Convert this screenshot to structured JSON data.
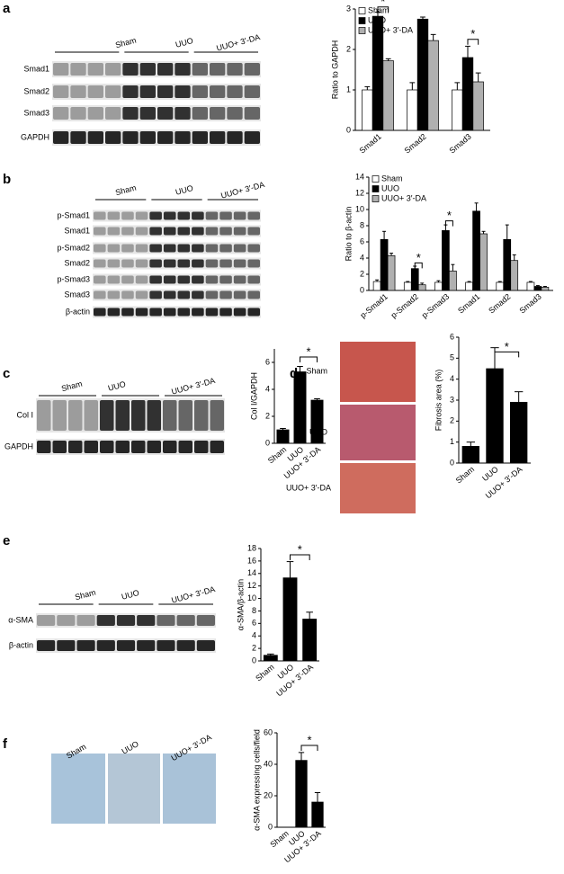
{
  "panels": [
    "a",
    "b",
    "c",
    "d",
    "e",
    "f"
  ],
  "blots": [
    {
      "groups": [
        "Sham",
        "UUO",
        "UUO+ 3′-DA"
      ],
      "rows": [
        "Smad1",
        "Smad2",
        "Smad3",
        "GAPDH"
      ]
    },
    {
      "groups": [
        "Sham",
        "UUO",
        "UUO+ 3′-DA"
      ],
      "rows": [
        "p-Smad1",
        "Smad1",
        "p-Smad2",
        "Smad2",
        "p-Smad3",
        "Smad3",
        "β-actin"
      ]
    },
    {
      "groups": [
        "Sham",
        "UUO",
        "UUO+ 3′-DA"
      ],
      "rows": [
        "Col I",
        "GAPDH"
      ]
    },
    {
      "groups": [
        "Sham",
        "UUO",
        "UUO+ 3′-DA"
      ],
      "rows": [
        "α-SMA",
        "β-actin"
      ]
    }
  ],
  "micrographs": [
    {
      "labels": [
        "Sham",
        "UUO",
        "UUO+ 3′-DA"
      ]
    },
    {
      "labels": [
        "Sham",
        "UUO",
        "UUO+ 3′-DA"
      ]
    }
  ],
  "chart_data": [
    {
      "type": "bar",
      "ylabel": "Ratio to GAPDH",
      "categories": [
        "Smad1",
        "Smad2",
        "Smad3"
      ],
      "series": [
        {
          "name": "Sham",
          "color": "#ffffff",
          "values": [
            1.0,
            1.0,
            1.0
          ],
          "errors": [
            0.08,
            0.18,
            0.18
          ]
        },
        {
          "name": "UUO",
          "color": "#000000",
          "values": [
            2.82,
            2.75,
            1.8
          ],
          "errors": [
            0.1,
            0.05,
            0.28
          ]
        },
        {
          "name": "UUO+ 3′-DA",
          "color": "#b0b0b0",
          "values": [
            1.72,
            2.22,
            1.2
          ],
          "errors": [
            0.05,
            0.15,
            0.22
          ]
        }
      ],
      "ylim": [
        0,
        3
      ],
      "yticks": [
        0,
        1,
        2,
        3
      ],
      "legend": "upper left",
      "annotations": [
        "*",
        "*"
      ]
    },
    {
      "type": "bar",
      "ylabel": "Ratio to β-actin",
      "categories": [
        "p-Smad1",
        "p-Smad2",
        "p-Smad3",
        "Smad1",
        "Smad2",
        "Smad3"
      ],
      "series": [
        {
          "name": "Sham",
          "color": "#ffffff",
          "values": [
            1.1,
            1.0,
            1.0,
            1.0,
            1.0,
            1.0
          ],
          "errors": [
            0.2,
            0.1,
            0.2,
            0.1,
            0.1,
            0.1
          ]
        },
        {
          "name": "UUO",
          "color": "#000000",
          "values": [
            6.3,
            2.7,
            7.4,
            9.8,
            6.3,
            0.5
          ],
          "errors": [
            1.0,
            0.3,
            0.7,
            1.0,
            1.8,
            0.1
          ]
        },
        {
          "name": "UUO+ 3′-DA",
          "color": "#b0b0b0",
          "values": [
            4.3,
            0.7,
            2.4,
            7.0,
            3.7,
            0.4
          ],
          "errors": [
            0.3,
            0.2,
            0.8,
            0.3,
            0.7,
            0.1
          ]
        }
      ],
      "ylim": [
        0,
        14
      ],
      "yticks": [
        0,
        2,
        4,
        6,
        8,
        10,
        12,
        14
      ],
      "legend": "upper left",
      "annotations": [
        "*",
        "*"
      ]
    },
    {
      "type": "bar",
      "ylabel": "Col I/GAPDH",
      "categories": [
        "Sham",
        "UUO",
        "UUO+ 3′-DA"
      ],
      "values": [
        1.0,
        5.3,
        3.2
      ],
      "errors": [
        0.1,
        0.4,
        0.1
      ],
      "color": "#000000",
      "ylim": [
        0,
        7
      ],
      "yticks": [
        0,
        2,
        4,
        6
      ],
      "annotations": [
        "*"
      ]
    },
    {
      "type": "bar",
      "ylabel": "Fibrosis area (%)",
      "categories": [
        "Sham",
        "UUO",
        "UUO+ 3′-DA"
      ],
      "values": [
        0.8,
        4.5,
        2.9
      ],
      "errors": [
        0.2,
        1.0,
        0.5
      ],
      "color": "#000000",
      "ylim": [
        0,
        6
      ],
      "yticks": [
        0,
        1,
        2,
        3,
        4,
        5,
        6
      ],
      "annotations": [
        "*"
      ]
    },
    {
      "type": "bar",
      "ylabel": "α-SMA/β-actin",
      "categories": [
        "Sham",
        "UUO",
        "UUO+ 3′-DA"
      ],
      "values": [
        0.9,
        13.3,
        6.7
      ],
      "errors": [
        0.2,
        2.6,
        1.1
      ],
      "color": "#000000",
      "ylim": [
        0,
        18
      ],
      "yticks": [
        0,
        2,
        4,
        6,
        8,
        10,
        12,
        14,
        16,
        18
      ],
      "annotations": [
        "*"
      ]
    },
    {
      "type": "bar",
      "ylabel": "α-SMA expressing cells/field",
      "categories": [
        "Sham",
        "UUO",
        "UUO+ 3′-DA"
      ],
      "values": [
        0,
        42.5,
        16
      ],
      "errors": [
        0,
        5,
        6
      ],
      "color": "#000000",
      "ylim": [
        0,
        60
      ],
      "yticks": [
        0,
        20,
        40,
        60
      ],
      "annotations": [
        "*"
      ]
    }
  ]
}
